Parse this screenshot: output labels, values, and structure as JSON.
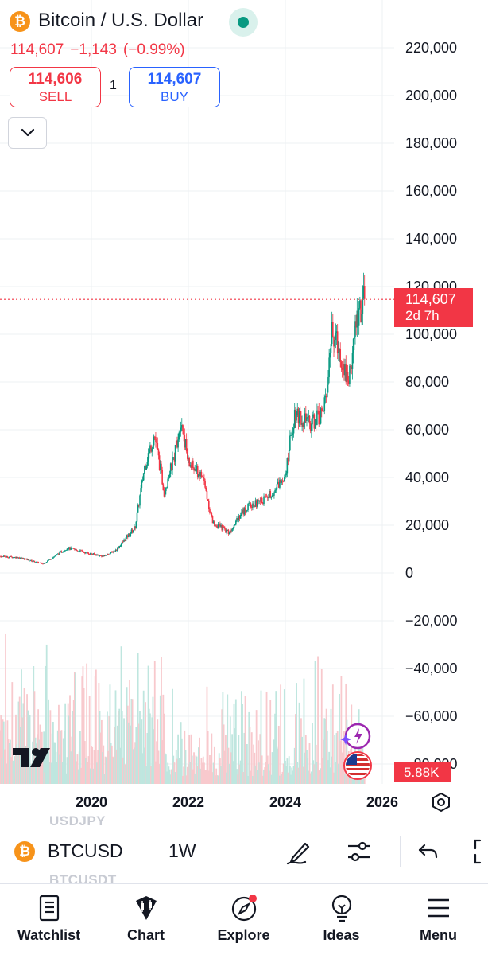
{
  "header": {
    "title": "Bitcoin / U.S. Dollar",
    "last_price": "114,607",
    "change": "−1,143",
    "change_pct": "(−0.99%)",
    "sell": {
      "price": "114,606",
      "label": "SELL"
    },
    "buy": {
      "price": "114,607",
      "label": "BUY"
    },
    "spread": "1",
    "icons": {
      "logo": "bitcoin-icon",
      "status": "market-open-dot",
      "collapse": "chevron-down-icon"
    }
  },
  "chart": {
    "price_axis_labels": [
      "220,000",
      "200,000",
      "180,000",
      "160,000",
      "140,000",
      "120,000",
      "100,000",
      "80,000",
      "60,000",
      "40,000",
      "20,000",
      "0",
      "−20,000",
      "−40,000",
      "−60,000",
      "−80,000"
    ],
    "time_axis_labels": [
      "2020",
      "2022",
      "2024",
      "2026"
    ],
    "current_price_label": "114,607",
    "countdown": "2d 7h",
    "volume_label": "5.88K",
    "colors": {
      "up": "#089981",
      "down": "#f23645",
      "grid": "#eef0f3"
    }
  },
  "chart_data": {
    "type": "candlestick",
    "symbol": "BTCUSD",
    "interval": "1W",
    "title": "",
    "ylim": [
      -80000,
      220000
    ],
    "x_ticks": [
      "2020",
      "2022",
      "2024",
      "2026"
    ],
    "x": [
      2018.0,
      2018.5,
      2019.0,
      2019.5,
      2020.0,
      2020.25,
      2020.5,
      2020.9,
      2021.1,
      2021.3,
      2021.5,
      2021.7,
      2021.85,
      2022.0,
      2022.3,
      2022.5,
      2022.85,
      2023.0,
      2023.25,
      2023.5,
      2023.8,
      2024.0,
      2024.2,
      2024.5,
      2024.8,
      2024.95,
      2025.1,
      2025.3,
      2025.5,
      2025.65
    ],
    "close": [
      7000,
      6500,
      3800,
      10500,
      8000,
      7000,
      9500,
      19000,
      45000,
      58000,
      34000,
      48000,
      65000,
      46000,
      40000,
      21000,
      17000,
      23000,
      28000,
      30000,
      35000,
      42000,
      68000,
      62000,
      68000,
      100000,
      95000,
      80000,
      110000,
      114607
    ],
    "volume_label": "5.88K",
    "grid": true
  },
  "toolbar": {
    "symbol": "BTCUSD",
    "interval": "1W",
    "prev_symbol": "USDJPY",
    "next_symbol": "BTCUSDT",
    "icons": [
      "drawing-pen-icon",
      "indicators-sliders-icon",
      "undo-icon",
      "fullscreen-icon"
    ]
  },
  "nav": {
    "items": [
      {
        "label": "Watchlist",
        "icon": "watchlist-icon"
      },
      {
        "label": "Chart",
        "icon": "chart-candles-icon"
      },
      {
        "label": "Explore",
        "icon": "explore-compass-icon"
      },
      {
        "label": "Ideas",
        "icon": "ideas-bulb-icon"
      },
      {
        "label": "Menu",
        "icon": "menu-icon"
      }
    ]
  }
}
